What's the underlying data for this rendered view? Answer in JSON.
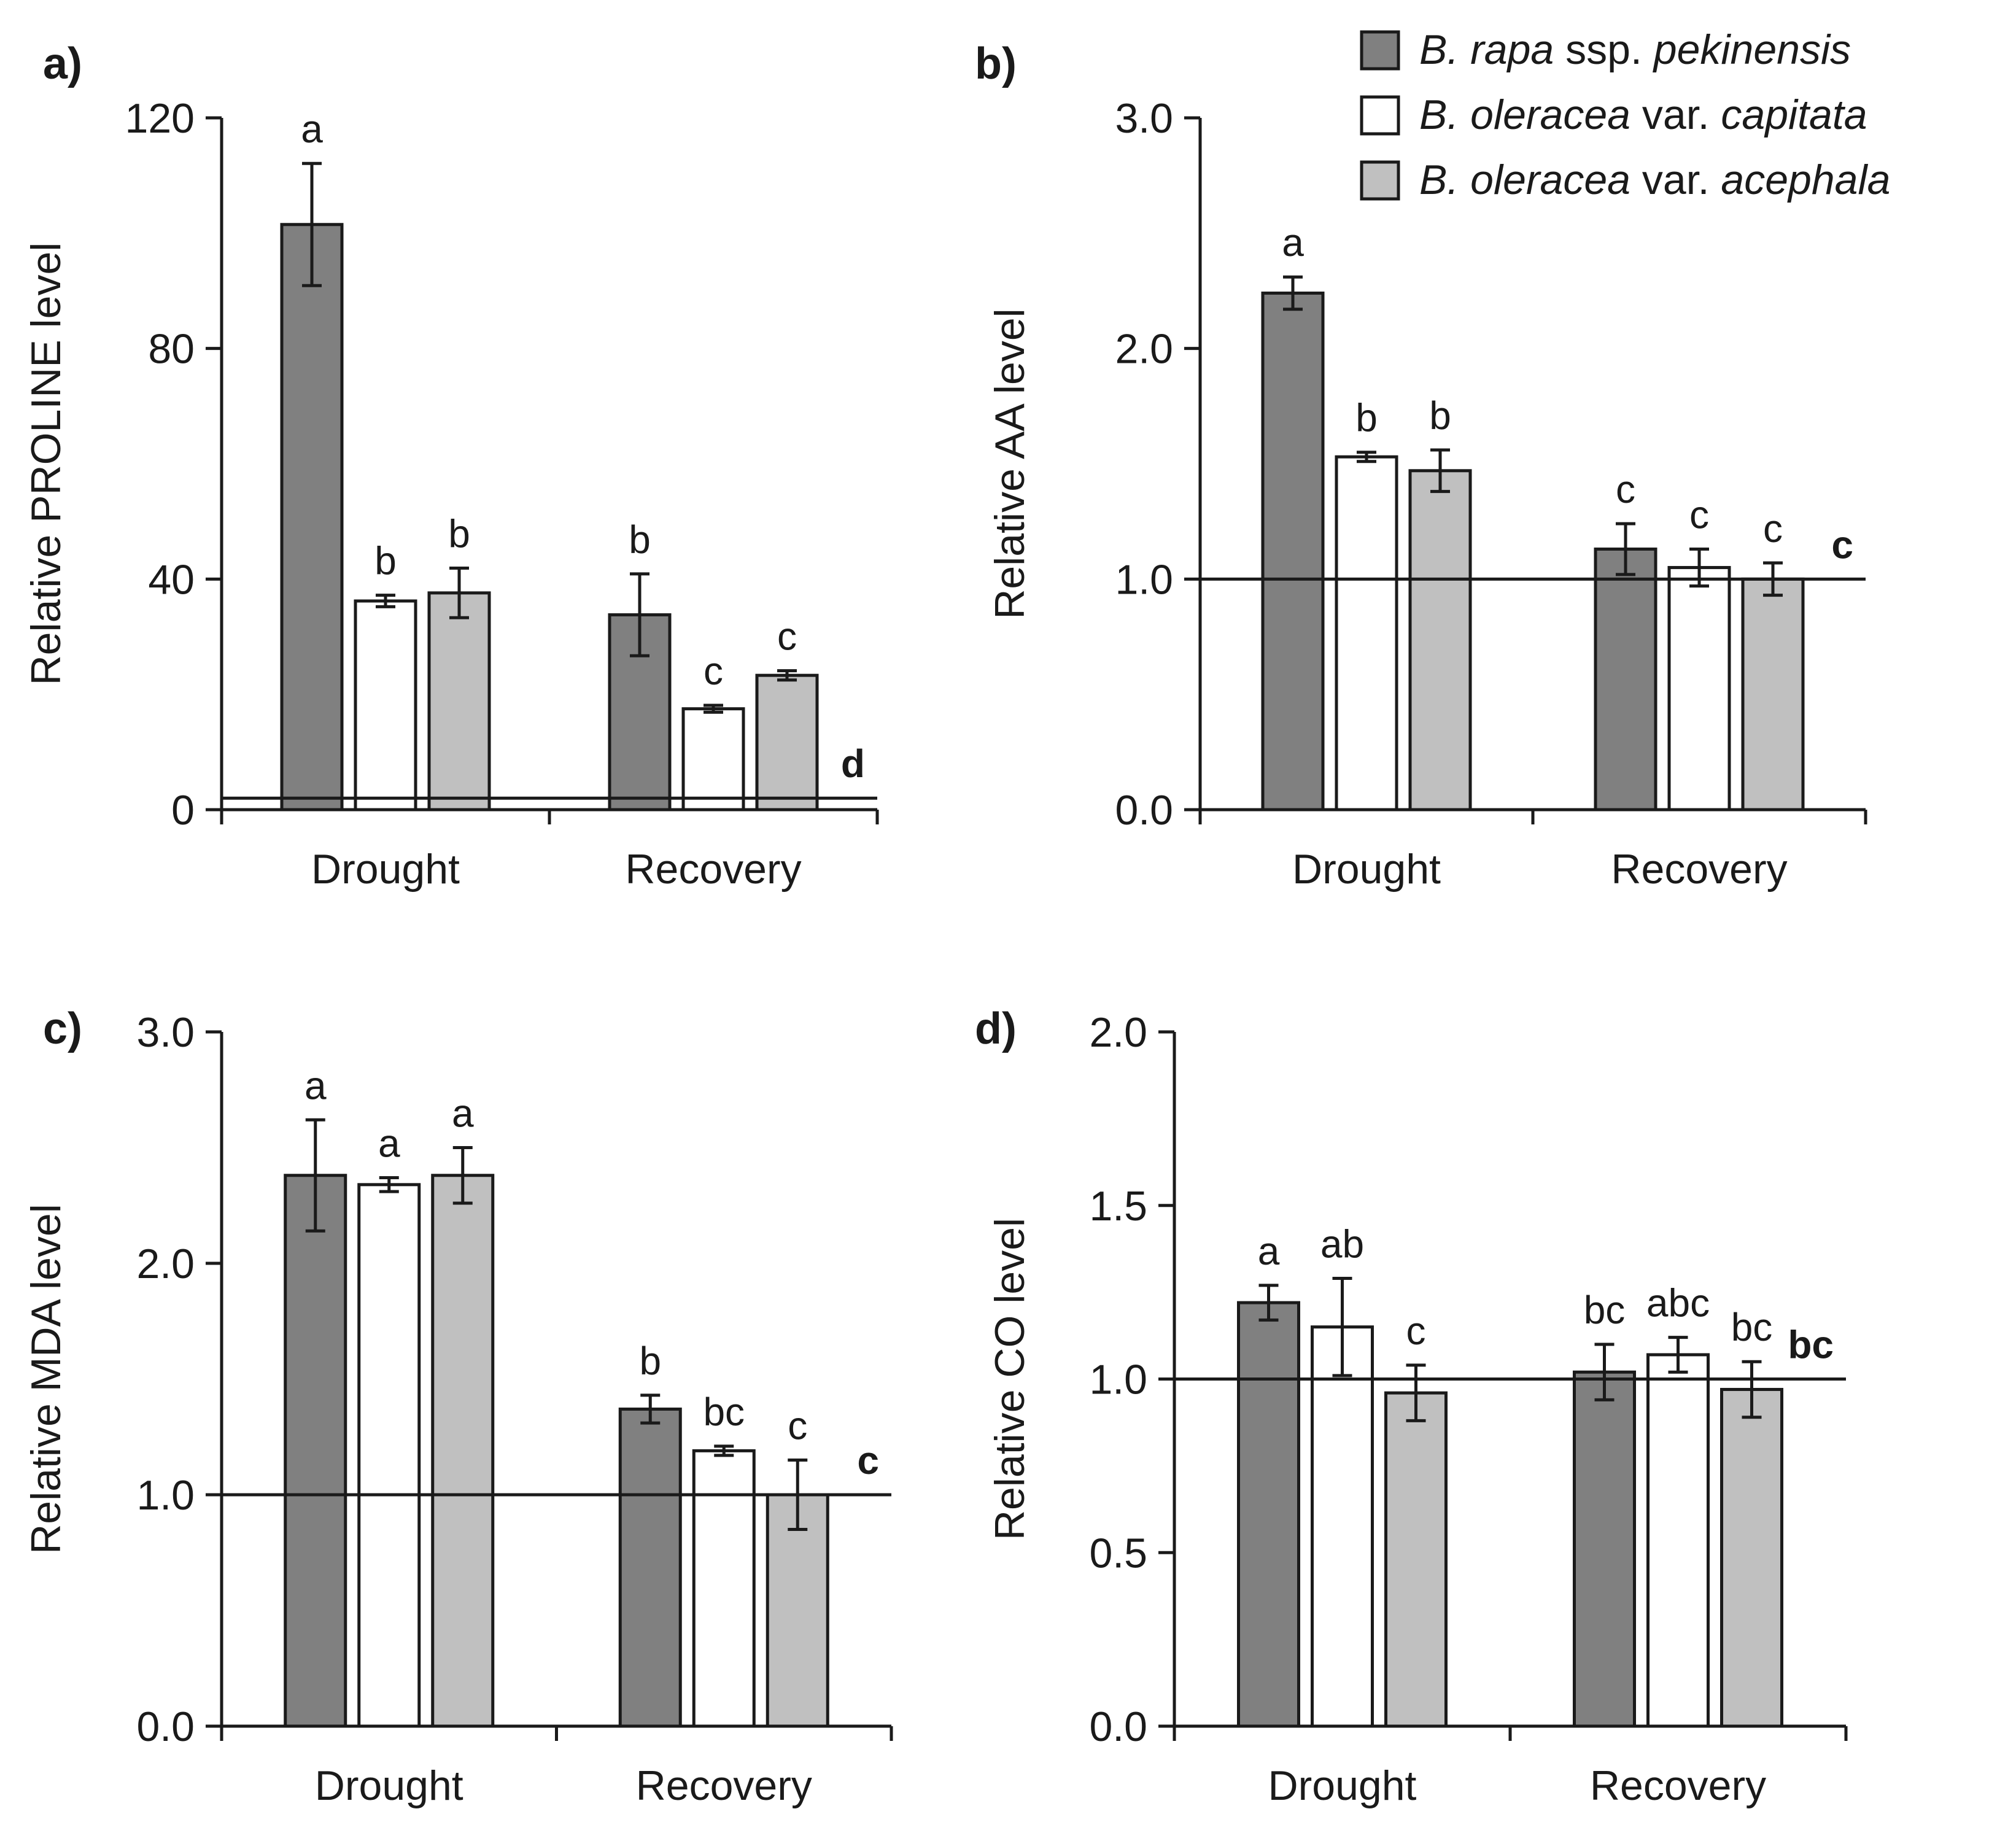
{
  "legend": {
    "entries": [
      {
        "series": "pekinensis",
        "color": "#808080",
        "parts": [
          {
            "t": "B. rapa",
            "i": true
          },
          {
            "t": " ssp. ",
            "i": false
          },
          {
            "t": "pekinensis",
            "i": true
          }
        ]
      },
      {
        "series": "capitata",
        "color": "#ffffff",
        "parts": [
          {
            "t": "B. oleracea",
            "i": true
          },
          {
            "t": " var. ",
            "i": false
          },
          {
            "t": "capitata",
            "i": true
          }
        ]
      },
      {
        "series": "acephala",
        "color": "#c0c0c0",
        "parts": [
          {
            "t": "B. oleracea",
            "i": true
          },
          {
            "t": " var. ",
            "i": false
          },
          {
            "t": "acephala",
            "i": true
          }
        ]
      }
    ]
  },
  "chart_data": [
    {
      "panel": "a)",
      "type": "bar",
      "ylabel": "Relative PROLINE level",
      "yticks": [
        "0",
        "40",
        "80",
        "120"
      ],
      "ylim": [
        0,
        120
      ],
      "categories": [
        "Drought",
        "Recovery"
      ],
      "reference_line": 2,
      "reference_letter": "d",
      "series": [
        {
          "name": "B. rapa ssp. pekinensis",
          "values": [
            101.5,
            33.8
          ],
          "errors": [
            10.6,
            7.1
          ],
          "letters": [
            "a",
            "b"
          ]
        },
        {
          "name": "B. oleracea var. capitata",
          "values": [
            36.2,
            17.5
          ],
          "errors": [
            1.0,
            0.6
          ],
          "letters": [
            "b",
            "c"
          ]
        },
        {
          "name": "B. oleracea var. acephala",
          "values": [
            37.6,
            23.3
          ],
          "errors": [
            4.3,
            0.8
          ],
          "letters": [
            "b",
            "c"
          ]
        }
      ]
    },
    {
      "panel": "b)",
      "type": "bar",
      "ylabel": "Relative AA level",
      "yticks": [
        "0.0",
        "1.0",
        "2.0",
        "3.0"
      ],
      "ylim": [
        0,
        3
      ],
      "categories": [
        "Drought",
        "Recovery"
      ],
      "reference_line": 1.0,
      "reference_letter": "c",
      "series": [
        {
          "name": "B. rapa ssp. pekinensis",
          "values": [
            2.24,
            1.13
          ],
          "errors": [
            0.07,
            0.11
          ],
          "letters": [
            "a",
            "c"
          ]
        },
        {
          "name": "B. oleracea var. capitata",
          "values": [
            1.53,
            1.05
          ],
          "errors": [
            0.02,
            0.08
          ],
          "letters": [
            "b",
            "c"
          ]
        },
        {
          "name": "B. oleracea var. acephala",
          "values": [
            1.47,
            1.0
          ],
          "errors": [
            0.09,
            0.07
          ],
          "letters": [
            "b",
            "c"
          ]
        }
      ]
    },
    {
      "panel": "c)",
      "type": "bar",
      "ylabel": "Relative MDA level",
      "yticks": [
        "0.0",
        "1.0",
        "2.0",
        "3.0"
      ],
      "ylim": [
        0,
        3
      ],
      "categories": [
        "Drought",
        "Recovery"
      ],
      "reference_line": 1.0,
      "reference_letter": "c",
      "series": [
        {
          "name": "B. rapa ssp. pekinensis",
          "values": [
            2.38,
            1.37
          ],
          "errors": [
            0.24,
            0.06
          ],
          "letters": [
            "a",
            "b"
          ]
        },
        {
          "name": "B. oleracea var. capitata",
          "values": [
            2.34,
            1.19
          ],
          "errors": [
            0.03,
            0.02
          ],
          "letters": [
            "a",
            "bc"
          ]
        },
        {
          "name": "B. oleracea var. acephala",
          "values": [
            2.38,
            1.0
          ],
          "errors": [
            0.12,
            0.15
          ],
          "letters": [
            "a",
            "c"
          ]
        }
      ]
    },
    {
      "panel": "d)",
      "type": "bar",
      "ylabel": "Relative CO level",
      "yticks": [
        "0.0",
        "0.5",
        "1.0",
        "1.5",
        "2.0"
      ],
      "ylim": [
        0,
        2
      ],
      "categories": [
        "Drought",
        "Recovery"
      ],
      "reference_line": 1.0,
      "reference_letter": "bc",
      "series": [
        {
          "name": "B. rapa ssp. pekinensis",
          "values": [
            1.22,
            1.02
          ],
          "errors": [
            0.05,
            0.08
          ],
          "letters": [
            "a",
            "bc"
          ]
        },
        {
          "name": "B. oleracea var. capitata",
          "values": [
            1.15,
            1.07
          ],
          "errors": [
            0.14,
            0.05
          ],
          "letters": [
            "ab",
            "abc"
          ]
        },
        {
          "name": "B. oleracea var. acephala",
          "values": [
            0.96,
            0.97
          ],
          "errors": [
            0.08,
            0.08
          ],
          "letters": [
            "c",
            "bc"
          ]
        }
      ]
    }
  ]
}
